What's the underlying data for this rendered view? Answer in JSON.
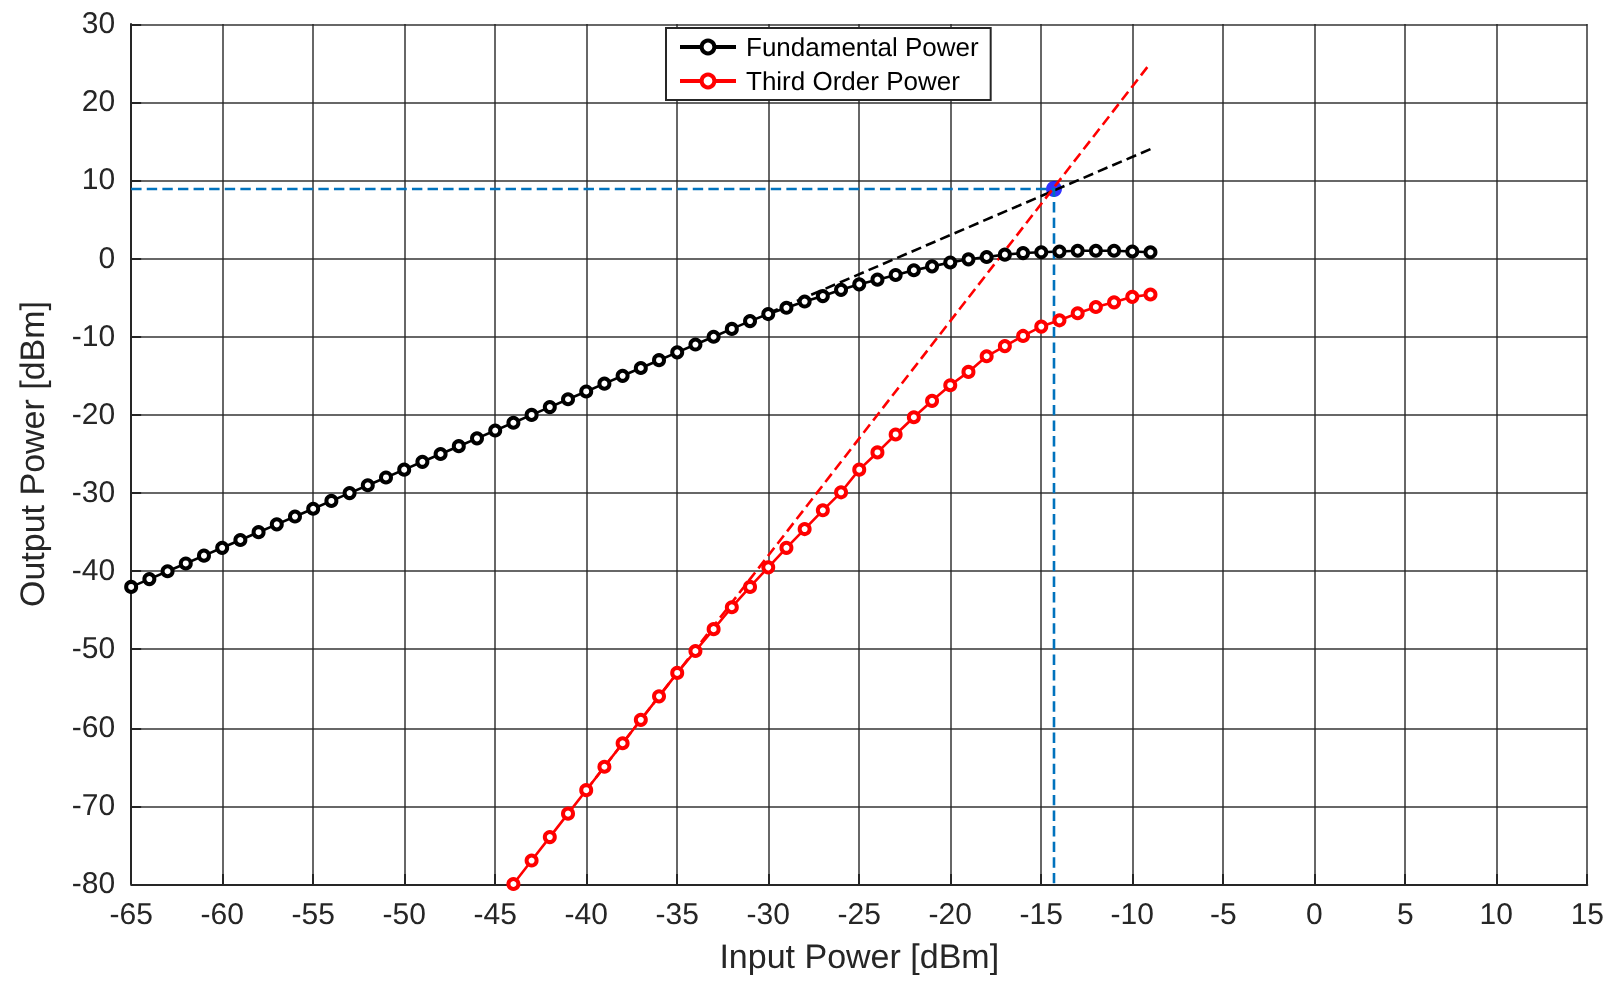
{
  "chart_data": {
    "type": "line",
    "xlabel": "Input Power [dBm]",
    "ylabel": "Output Power [dBm]",
    "xlim": [
      -65,
      15
    ],
    "xticks": [
      -65,
      -60,
      -55,
      -50,
      -45,
      -40,
      -35,
      -30,
      -25,
      -20,
      -15,
      -10,
      -5,
      0,
      5,
      10,
      15
    ],
    "ylim": [
      -80,
      30
    ],
    "yticks": [
      -80,
      -70,
      -60,
      -50,
      -40,
      -30,
      -20,
      -10,
      0,
      10,
      20,
      30
    ],
    "grid": true,
    "legend": "top",
    "series": [
      {
        "name": "Fundamental Power",
        "color": "#000000",
        "marker": "circle",
        "line_style": "solid",
        "x": [
          -65,
          -64,
          -63,
          -62,
          -61,
          -60,
          -59,
          -58,
          -57,
          -56,
          -55,
          -54,
          -53,
          -52,
          -51,
          -50,
          -49,
          -48,
          -47,
          -46,
          -45,
          -44,
          -43,
          -42,
          -41,
          -40,
          -39,
          -38,
          -37,
          -36,
          -35,
          -34,
          -33,
          -32,
          -31,
          -30,
          -29,
          -28,
          -27,
          -26,
          -25,
          -24,
          -23,
          -22,
          -21,
          -20,
          -19,
          -18,
          -17,
          -16,
          -15,
          -14,
          -13,
          -12,
          -11,
          -10,
          -9
        ],
        "values": [
          -42,
          -41,
          -40,
          -39,
          -38,
          -37,
          -36,
          -35,
          -34,
          -33,
          -32,
          -31,
          -30,
          -29,
          -28,
          -27,
          -26,
          -25,
          -24,
          -23,
          -22,
          -21,
          -20,
          -19,
          -18,
          -17,
          -16,
          -15,
          -14,
          -13,
          -12,
          -11,
          -10,
          -9,
          -8,
          -7.1,
          -6.3,
          -5.5,
          -4.8,
          -4,
          -3.3,
          -2.7,
          -2.1,
          -1.5,
          -1,
          -0.5,
          -0.1,
          0.2,
          0.5,
          0.7,
          0.8,
          0.9,
          1,
          1,
          1,
          0.9,
          0.8
        ]
      },
      {
        "name": "Third Order Power",
        "color": "#ff0000",
        "marker": "circle",
        "line_style": "solid",
        "x": [
          -44,
          -43,
          -42,
          -41,
          -40,
          -39,
          -38,
          -37,
          -36,
          -35,
          -34,
          -33,
          -32,
          -31,
          -30,
          -29,
          -28,
          -27,
          -26,
          -25,
          -24,
          -23,
          -22,
          -21,
          -20,
          -19,
          -18,
          -17,
          -16,
          -15,
          -14,
          -13,
          -12,
          -11,
          -10,
          -9
        ],
        "values": [
          -80,
          -77,
          -74,
          -71,
          -68,
          -65,
          -62,
          -59,
          -56,
          -53,
          -50.2,
          -47.4,
          -44.6,
          -42,
          -39.5,
          -37,
          -34.6,
          -32.2,
          -29.9,
          -27,
          -24.8,
          -22.5,
          -20.3,
          -18.2,
          -16.2,
          -14.5,
          -12.5,
          -11.2,
          -9.9,
          -8.7,
          -7.9,
          -7,
          -6.2,
          -5.6,
          -4.9,
          -4.6
        ]
      },
      {
        "color": "#000000",
        "line_style": "dashed",
        "x": [
          -30,
          -9
        ],
        "values": [
          -7,
          14
        ]
      },
      {
        "color": "#ff0000",
        "line_style": "dashed",
        "x": [
          -40,
          -9
        ],
        "values": [
          -68,
          25
        ]
      },
      {
        "color": "#0072bd",
        "line_style": "dashed",
        "x": [
          -65,
          -14.3,
          -14.3
        ],
        "values": [
          8.9,
          8.9,
          -80
        ]
      },
      {
        "type": "scatter",
        "color": "#0000ff",
        "marker": "circle",
        "x": [
          -14.3
        ],
        "values": [
          8.9
        ]
      }
    ]
  }
}
